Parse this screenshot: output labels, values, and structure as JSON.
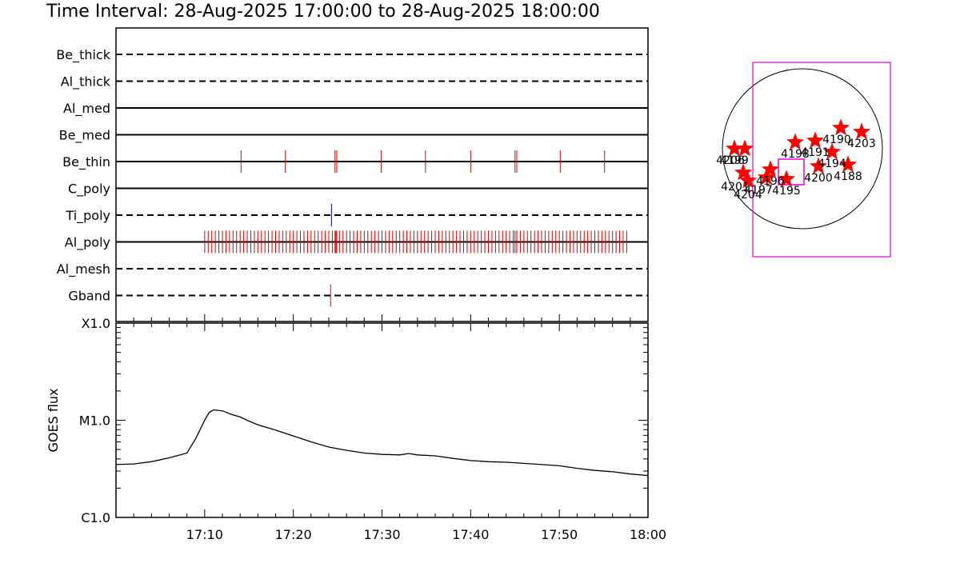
{
  "header": {
    "title": "Time Interval: 28-Aug-2025 17:00:00 to 28-Aug-2025 18:00:00"
  },
  "colors": {
    "axis": "#000000",
    "event_red": "#dd0000",
    "event_blue": "#000088",
    "fov_magenta": "#e000e0",
    "star_red": "#ff0000"
  },
  "chart_data": [
    {
      "type": "timeline",
      "x_range_minutes": [
        0,
        60
      ],
      "x_tick_minutes": [
        10,
        20,
        30,
        40,
        50,
        60
      ],
      "x_tick_labels": [
        "17:10",
        "17:20",
        "17:30",
        "17:40",
        "17:50",
        "18:00"
      ],
      "channels": [
        {
          "name": "Be_thick",
          "line": "dashed",
          "events": [],
          "event_color": "red"
        },
        {
          "name": "Al_thick",
          "line": "dashed",
          "events": [],
          "event_color": "red"
        },
        {
          "name": "Al_med",
          "line": "solid",
          "events": [],
          "event_color": "red"
        },
        {
          "name": "Be_med",
          "line": "solid",
          "events": [],
          "event_color": "red"
        },
        {
          "name": "Be_thin",
          "line": "solid",
          "event_color": "red",
          "events": [
            14.1,
            19.1,
            24.7,
            24.9,
            29.9,
            34.9,
            40.0,
            45.0,
            45.2,
            50.1,
            55.1
          ]
        },
        {
          "name": "C_poly",
          "line": "solid",
          "events": [],
          "event_color": "red"
        },
        {
          "name": "Ti_poly",
          "line": "dashed",
          "events": [
            24.3
          ],
          "event_color": "blue"
        },
        {
          "name": "Al_poly",
          "line": "solid",
          "event_color": "red",
          "events_range": {
            "start": 10.0,
            "end": 57.6,
            "step": 0.4
          },
          "events_extra": [
            24.7,
            24.9,
            45.0,
            45.2
          ]
        },
        {
          "name": "Al_mesh",
          "line": "dashed",
          "events": [],
          "event_color": "red"
        },
        {
          "name": "Gband",
          "line": "dashed",
          "events": [
            24.2
          ],
          "event_color": "red"
        }
      ]
    },
    {
      "type": "line",
      "ylabel": "GOES flux",
      "yscale": "log",
      "ylim": [
        1e-06,
        0.0001
      ],
      "y_ticks": [
        1e-06,
        1e-05,
        0.0001
      ],
      "y_tick_labels": [
        "C1.0",
        "M1.0",
        "X1.0"
      ],
      "x_range_minutes": [
        0,
        60
      ],
      "series": [
        {
          "x": [
            0,
            2,
            4,
            6,
            8,
            9,
            10,
            10.5,
            11,
            12,
            13,
            14,
            15,
            16,
            18,
            20,
            22,
            24,
            26,
            28,
            30,
            32,
            33,
            34,
            36,
            38,
            40,
            42,
            44,
            46,
            48,
            50,
            52,
            54,
            56,
            58,
            60
          ],
          "y": [
            3.5e-06,
            3.55e-06,
            3.75e-06,
            4.1e-06,
            4.6e-06,
            6.5e-06,
            1e-05,
            1.2e-05,
            1.28e-05,
            1.25e-05,
            1.15e-05,
            1.08e-05,
            9.8e-06,
            9e-06,
            7.9e-06,
            6.9e-06,
            6e-06,
            5.3e-06,
            4.9e-06,
            4.6e-06,
            4.45e-06,
            4.4e-06,
            4.55e-06,
            4.4e-06,
            4.3e-06,
            4.05e-06,
            3.85e-06,
            3.75e-06,
            3.7e-06,
            3.6e-06,
            3.5e-06,
            3.4e-06,
            3.2e-06,
            3.05e-06,
            2.95e-06,
            2.8e-06,
            2.7e-06
          ]
        }
      ]
    },
    {
      "type": "scatter",
      "description_key": "active-region-map",
      "coords": "solar disk, units of solar radius; +x west, +y north",
      "disk_radius": 1.0,
      "outer_fov": {
        "x0": -0.62,
        "y0": -1.35,
        "x1": 1.1,
        "y1": 1.08
      },
      "inner_fov": {
        "x0": -0.3,
        "y0": -0.45,
        "x1": 0.02,
        "y1": -0.13
      },
      "regions": [
        {
          "id": "4199",
          "x": -0.85,
          "y": 0.0,
          "label_dx": 0.0,
          "label_dy": -0.13
        },
        {
          "id": "4206",
          "x": -0.72,
          "y": 0.0,
          "label_dx": -0.18,
          "label_dy": -0.13
        },
        {
          "id": "4198",
          "x": -0.09,
          "y": 0.08,
          "label_dx": 0.0,
          "label_dy": -0.13
        },
        {
          "id": "4191",
          "x": 0.16,
          "y": 0.1,
          "label_dx": 0.0,
          "label_dy": -0.13
        },
        {
          "id": "4190",
          "x": 0.48,
          "y": 0.26,
          "label_dx": -0.05,
          "label_dy": -0.13
        },
        {
          "id": "4203",
          "x": 0.74,
          "y": 0.21,
          "label_dx": 0.0,
          "label_dy": -0.13
        },
        {
          "id": "4194",
          "x": 0.37,
          "y": -0.04,
          "label_dx": 0.0,
          "label_dy": -0.13
        },
        {
          "id": "4200",
          "x": 0.2,
          "y": -0.22,
          "label_dx": 0.0,
          "label_dy": -0.13
        },
        {
          "id": "4188",
          "x": 0.57,
          "y": -0.2,
          "label_dx": 0.0,
          "label_dy": -0.13
        },
        {
          "id": "4201",
          "x": -0.74,
          "y": -0.3,
          "label_dx": -0.1,
          "label_dy": -0.16
        },
        {
          "id": "4204",
          "x": -0.68,
          "y": -0.4,
          "label_dx": 0.0,
          "label_dy": -0.16
        },
        {
          "id": "4196",
          "x": -0.4,
          "y": -0.26,
          "label_dx": 0.0,
          "label_dy": -0.13
        },
        {
          "id": "4197",
          "x": -0.45,
          "y": -0.36,
          "label_dx": -0.1,
          "label_dy": -0.14
        },
        {
          "id": "4195",
          "x": -0.2,
          "y": -0.38,
          "label_dx": 0.0,
          "label_dy": -0.13
        }
      ]
    }
  ]
}
